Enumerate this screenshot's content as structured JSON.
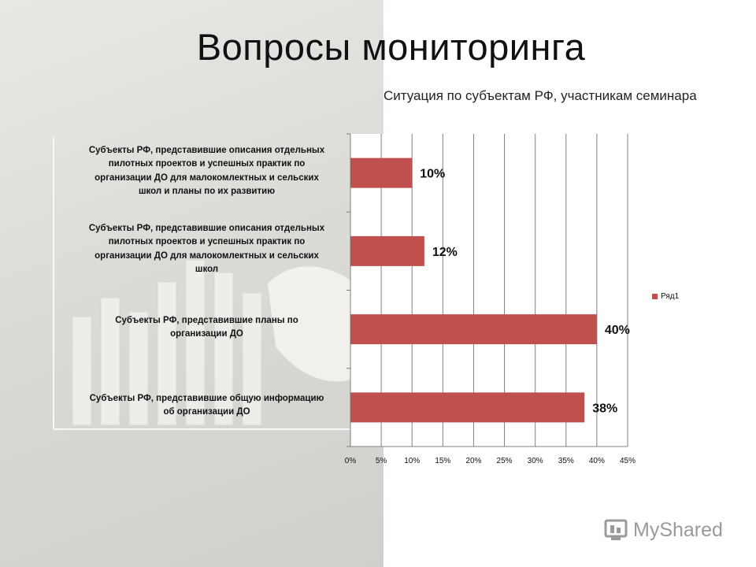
{
  "slide": {
    "title": "Вопросы мониторинга",
    "subtitle": "Ситуация по субъектам РФ, участникам семинара"
  },
  "watermark": {
    "text": "MyShared",
    "icon": "mortarboard-icon"
  },
  "chart_data": {
    "type": "bar",
    "orientation": "horizontal",
    "categories": [
      "Субъекты РФ, представившие описания отдельных пилотных проектов и успешных практик по организации ДО для малокомлектных и сельских школ и планы по их развитию",
      "Субъекты РФ, представившие описания отдельных пилотных проектов и успешных практик по организации ДО для малокомлектных и сельских школ",
      "Субъекты РФ, представившие планы по организации ДО",
      "Субъекты РФ, представившие общую информацию об организации ДО"
    ],
    "category_lines": [
      [
        "Субъекты РФ, представившие описания отдельных",
        "пилотных проектов и успешных практик по",
        "организации ДО для малокомлектных и сельских",
        "школ и планы по их развитию"
      ],
      [
        "Субъекты РФ, представившие описания отдельных",
        "пилотных проектов и успешных практик по",
        "организации ДО для малокомлектных и сельских",
        "школ"
      ],
      [
        "Субъекты РФ, представившие планы по",
        "организации ДО"
      ],
      [
        "Субъекты РФ, представившие общую информацию",
        "об организации ДО"
      ]
    ],
    "series": [
      {
        "name": "Ряд1",
        "values": [
          10,
          12,
          40,
          38
        ],
        "data_labels": [
          "10%",
          "12%",
          "40%",
          "38%"
        ],
        "color": "#c0504d"
      }
    ],
    "x_ticks": [
      "0%",
      "5%",
      "10%",
      "15%",
      "20%",
      "25%",
      "30%",
      "35%",
      "40%",
      "45%"
    ],
    "xlim": [
      0,
      45
    ],
    "grid": "vertical",
    "legend": "right"
  }
}
